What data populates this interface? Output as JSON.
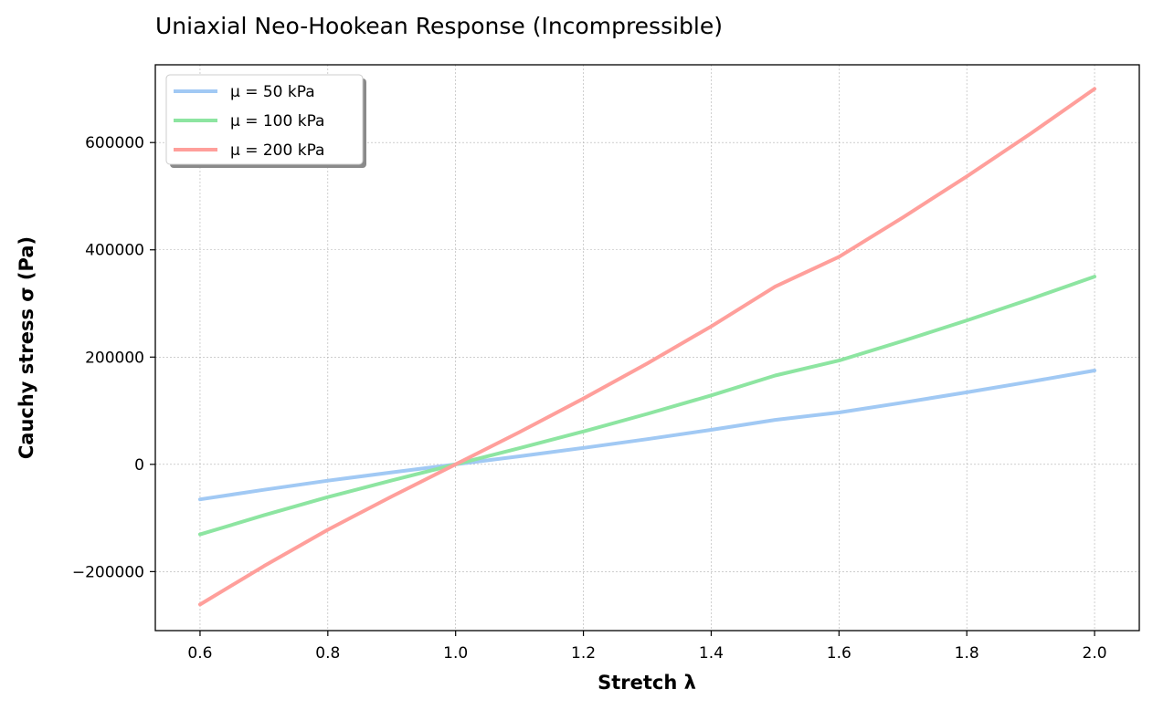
{
  "chart_data": {
    "type": "line",
    "title": "Uniaxial Neo-Hookean Response (Incompressible)",
    "xlabel": "Stretch λ",
    "ylabel": "Cauchy stress σ (Pa)",
    "xlim": [
      0.53,
      2.07
    ],
    "ylim": [
      -310000,
      745000
    ],
    "xticks": [
      0.6,
      0.8,
      1.0,
      1.2,
      1.4,
      1.6,
      1.8,
      2.0
    ],
    "xtick_labels": [
      "0.6",
      "0.8",
      "1.0",
      "1.2",
      "1.4",
      "1.6",
      "1.8",
      "2.0"
    ],
    "yticks": [
      -200000,
      0,
      200000,
      400000,
      600000
    ],
    "ytick_labels": [
      "−200000",
      "0",
      "200000",
      "400000",
      "600000"
    ],
    "grid": true,
    "legend_position": "top-left",
    "x": [
      0.6,
      0.7,
      0.8,
      0.9,
      1.0,
      1.1,
      1.2,
      1.3,
      1.4,
      1.5,
      1.6,
      1.7,
      1.8,
      1.9,
      2.0
    ],
    "series": [
      {
        "name": "μ = 50 kPa",
        "color": "#a1c9f4",
        "values": [
          -65333,
          -47429,
          -30500,
          -14944,
          0,
          15045,
          30667,
          47038,
          64286,
          82833,
          96750,
          115088,
          134222,
          154184,
          175000
        ]
      },
      {
        "name": "μ = 100 kPa",
        "color": "#8de5a1",
        "values": [
          -130667,
          -94857,
          -61000,
          -29889,
          0,
          30091,
          61333,
          94077,
          128571,
          165667,
          193500,
          230176,
          268444,
          308368,
          350000
        ]
      },
      {
        "name": "μ = 200 kPa",
        "color": "#ff9f9b",
        "values": [
          -261333,
          -189714,
          -122000,
          -59778,
          0,
          60182,
          122667,
          188154,
          257143,
          331333,
          387000,
          460353,
          536889,
          616737,
          700000
        ]
      }
    ]
  }
}
